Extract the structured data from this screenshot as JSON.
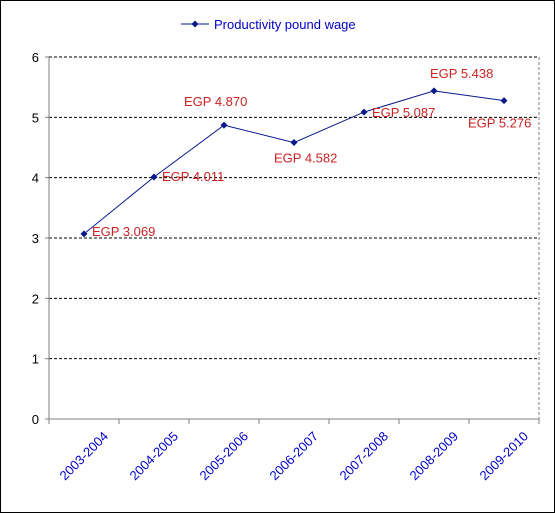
{
  "chart_data": {
    "type": "line",
    "categories": [
      "2003-2004",
      "2004-2005",
      "2005-2006",
      "2006-2007",
      "2007-2008",
      "2008-2009",
      "2009-2010"
    ],
    "series": [
      {
        "name": "Productivity pound wage",
        "values": [
          3.069,
          4.011,
          4.87,
          4.582,
          5.087,
          5.438,
          5.276
        ],
        "data_labels": [
          "EGP 3.069",
          "EGP 4.011",
          "EGP 4.870",
          "EGP 4.582",
          "EGP 5.087",
          "EGP 5.438",
          "EGP 5.276"
        ]
      }
    ],
    "ylim": [
      0,
      6
    ],
    "yticks": [
      "0",
      "1",
      "2",
      "3",
      "4",
      "5",
      "6"
    ],
    "grid": "horizontal-dashed",
    "legend_position": "top-center",
    "colors": {
      "line": "#0a1a8c",
      "data_label": "#cc2222",
      "x_tick": "#0000cc",
      "legend_text": "#0000cc"
    }
  }
}
